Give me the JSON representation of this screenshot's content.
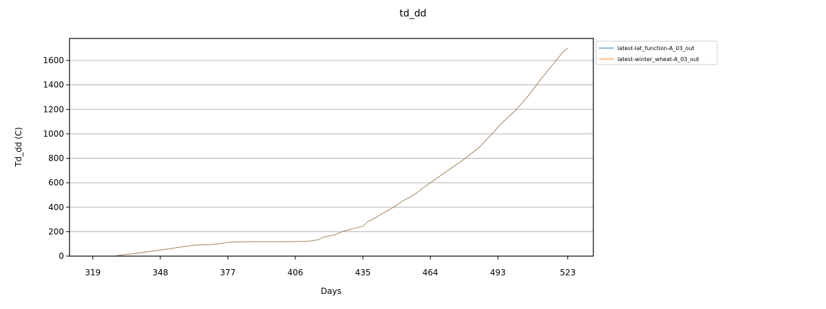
{
  "chart_data": {
    "type": "line",
    "title": "td_dd",
    "xlabel": "Days",
    "ylabel": "Td_dd (C)",
    "xlim": [
      309,
      534
    ],
    "ylim": [
      0,
      1780
    ],
    "xticks": [
      319,
      348,
      377,
      406,
      435,
      464,
      493,
      523
    ],
    "yticks": [
      0,
      200,
      400,
      600,
      800,
      1000,
      1200,
      1400,
      1600
    ],
    "grid": "y",
    "legend": "outside-top-right",
    "series": [
      {
        "name": "latest-lat_function-A_03_out",
        "color": "#1f77b4",
        "x": [
          329,
          334,
          340,
          346,
          352,
          358,
          363,
          369,
          374,
          377,
          380,
          384,
          390,
          400,
          410,
          413,
          416,
          418,
          420,
          423,
          426,
          428,
          432,
          435,
          437,
          440,
          443,
          446,
          449,
          452,
          455,
          458,
          461,
          464,
          467,
          470,
          473,
          476,
          479,
          482,
          485,
          488,
          491,
          494,
          497,
          500,
          503,
          506,
          509,
          512,
          515,
          518,
          521,
          523
        ],
        "y": [
          3,
          15,
          28,
          45,
          60,
          78,
          90,
          93,
          103,
          113,
          115,
          117,
          118,
          118,
          120,
          125,
          135,
          155,
          162,
          175,
          200,
          210,
          230,
          245,
          280,
          310,
          345,
          375,
          410,
          450,
          480,
          515,
          560,
          600,
          640,
          680,
          720,
          760,
          800,
          845,
          890,
          950,
          1010,
          1075,
          1130,
          1180,
          1245,
          1310,
          1385,
          1460,
          1530,
          1600,
          1670,
          1700
        ]
      },
      {
        "name": "latest-winter_wheat-A_03_out",
        "color": "#ff7f0e",
        "x": [
          329,
          334,
          340,
          346,
          352,
          358,
          363,
          369,
          374,
          377,
          380,
          384,
          390,
          400,
          410,
          413,
          416,
          418,
          420,
          423,
          426,
          428,
          432,
          435,
          437,
          440,
          443,
          446,
          449,
          452,
          455,
          458,
          461,
          464,
          467,
          470,
          473,
          476,
          479,
          482,
          485,
          488,
          491,
          494,
          497,
          500,
          503,
          506,
          509,
          512,
          515,
          518,
          521,
          523
        ],
        "y": [
          3,
          15,
          28,
          45,
          60,
          78,
          90,
          93,
          103,
          113,
          115,
          117,
          118,
          118,
          120,
          125,
          135,
          155,
          162,
          175,
          200,
          210,
          230,
          245,
          280,
          310,
          345,
          375,
          410,
          450,
          480,
          515,
          560,
          600,
          640,
          680,
          720,
          760,
          800,
          845,
          890,
          950,
          1010,
          1075,
          1130,
          1180,
          1245,
          1310,
          1385,
          1460,
          1530,
          1600,
          1670,
          1700
        ]
      }
    ]
  }
}
